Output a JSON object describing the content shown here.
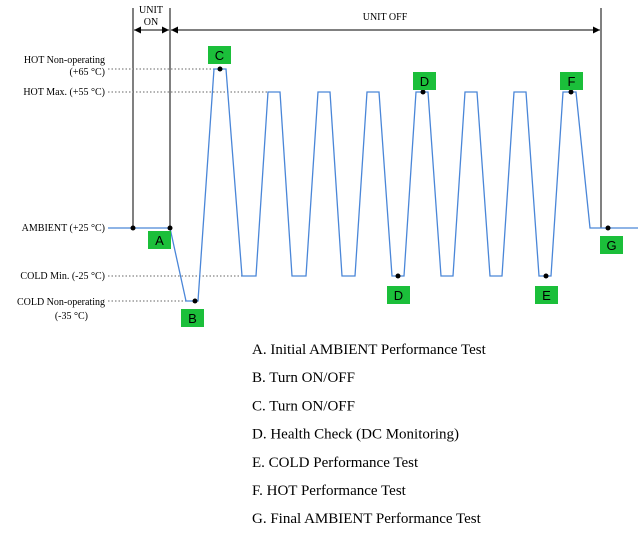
{
  "header": {
    "unit_on": [
      "UNIT",
      "ON"
    ],
    "unit_off": "UNIT OFF"
  },
  "levels": [
    {
      "name": "HOT Non-operating",
      "temp": "(+65 °C)"
    },
    {
      "name": "HOT Max.",
      "temp": "(+55 °C)"
    },
    {
      "name": "AMBIENT",
      "temp": "(+25 °C)"
    },
    {
      "name": "COLD Min.",
      "temp": "(-25 °C)"
    },
    {
      "name": "COLD Non-operating",
      "temp": "(-35 °C)"
    }
  ],
  "markers": [
    "A",
    "B",
    "C",
    "D",
    "D",
    "E",
    "F",
    "G"
  ],
  "legend": [
    "A. Initial AMBIENT Performance Test",
    "B. Turn ON/OFF",
    "C. Turn ON/OFF",
    "D. Health Check (DC Monitoring)",
    "E. COLD Performance Test",
    "F. HOT Performance Test",
    "G. Final AMBIENT Performance Test"
  ]
}
